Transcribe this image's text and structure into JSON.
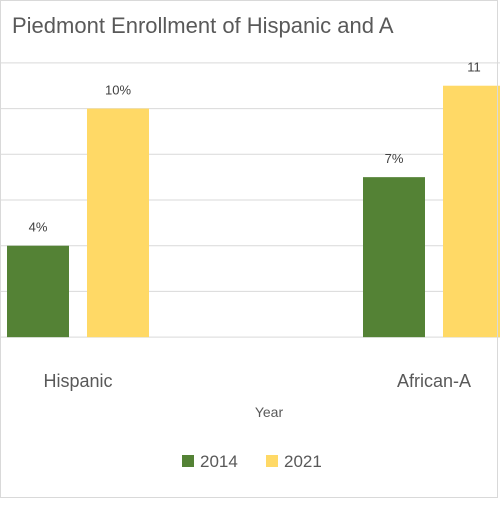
{
  "chart_data": {
    "type": "bar",
    "title": "Piedmont Enrollment of Hispanic and A",
    "xlabel": "Year",
    "ylabel": "",
    "categories": [
      "Hispanic",
      "African-A"
    ],
    "series": [
      {
        "name": "2014",
        "values": [
          4,
          7
        ],
        "labels": [
          "4%",
          "7%"
        ],
        "color": "#548235"
      },
      {
        "name": "2021",
        "values": [
          10,
          11
        ],
        "labels": [
          "10%",
          "11"
        ],
        "color": "#ffd966"
      }
    ],
    "ylim": [
      -1,
      13
    ],
    "grid": true,
    "legend": "bottom"
  },
  "colors": {
    "grid": "#d9d9d9",
    "text": "#404040",
    "title": "#595959",
    "axis": "#d9d9d9"
  }
}
